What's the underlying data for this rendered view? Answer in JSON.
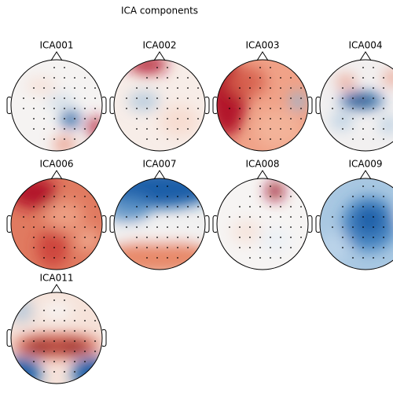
{
  "title": "ICA components",
  "components": [
    "ICA001",
    "ICA002",
    "ICA003",
    "ICA004",
    "ICA006",
    "ICA007",
    "ICA008",
    "ICA009",
    "ICA011"
  ]
}
